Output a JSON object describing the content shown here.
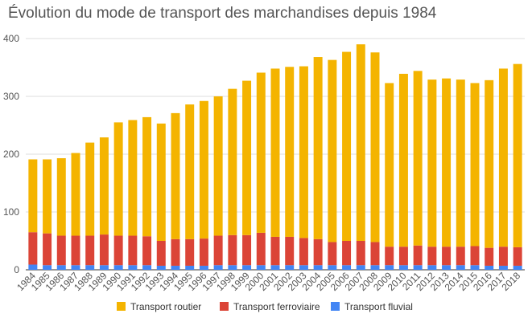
{
  "chart_data": {
    "type": "bar",
    "stacked": true,
    "title": "Évolution du mode de transport des marchandises depuis 1984",
    "xlabel": "",
    "ylabel": "",
    "ylim": [
      0,
      400
    ],
    "yticks": [
      0,
      100,
      200,
      300,
      400
    ],
    "grid": true,
    "legend_position": "bottom",
    "categories": [
      "1984",
      "1985",
      "1986",
      "1987",
      "1988",
      "1989",
      "1990",
      "1991",
      "1992",
      "1993",
      "1994",
      "1995",
      "1996",
      "1997",
      "1998",
      "1999",
      "2000",
      "2001",
      "2002",
      "2003",
      "2004",
      "2005",
      "2006",
      "2007",
      "2008",
      "2009",
      "2010",
      "2011",
      "2012",
      "2013",
      "2014",
      "2015",
      "2016",
      "2017",
      "2018"
    ],
    "series": [
      {
        "name": "Transport fluvial",
        "color": "#4285f4",
        "values": [
          9,
          8,
          8,
          8,
          8,
          8,
          8,
          8,
          8,
          7,
          7,
          7,
          7,
          8,
          8,
          8,
          8,
          8,
          8,
          8,
          8,
          8,
          8,
          8,
          8,
          8,
          8,
          8,
          8,
          8,
          8,
          8,
          7,
          7,
          7
        ]
      },
      {
        "name": "Transport ferroviaire",
        "color": "#db4437",
        "values": [
          56,
          55,
          51,
          51,
          51,
          53,
          51,
          51,
          50,
          43,
          46,
          46,
          47,
          51,
          52,
          52,
          56,
          49,
          49,
          47,
          45,
          40,
          42,
          42,
          40,
          32,
          32,
          34,
          32,
          32,
          32,
          33,
          31,
          33,
          32
        ]
      },
      {
        "name": "Transport routier",
        "color": "#f4b400",
        "values": [
          126,
          128,
          134,
          143,
          161,
          168,
          196,
          200,
          206,
          203,
          218,
          233,
          238,
          241,
          253,
          267,
          277,
          291,
          294,
          297,
          315,
          315,
          327,
          340,
          328,
          283,
          299,
          302,
          289,
          291,
          289,
          282,
          290,
          308,
          317
        ]
      }
    ],
    "legend_order": [
      "Transport routier",
      "Transport ferroviaire",
      "Transport fluvial"
    ]
  }
}
